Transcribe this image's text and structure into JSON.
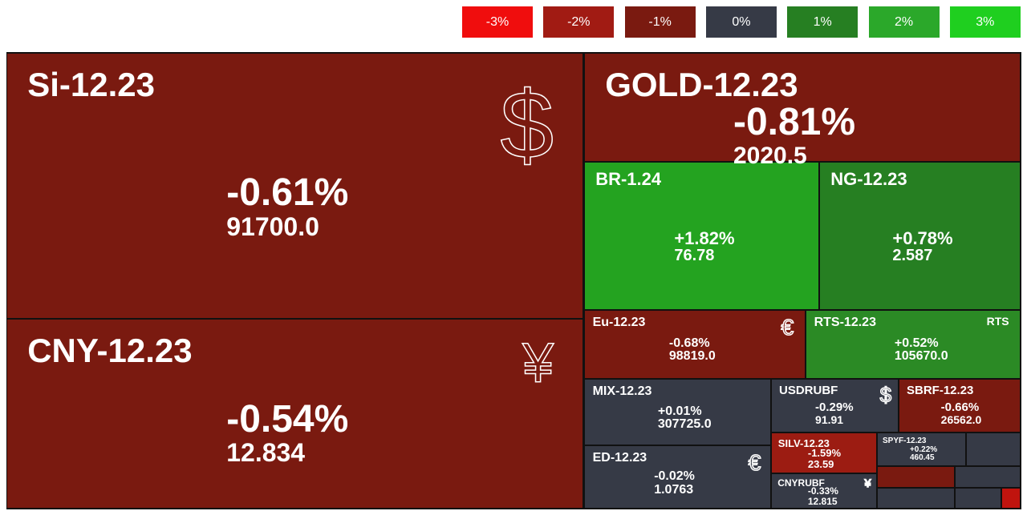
{
  "legend": [
    {
      "label": "-3%",
      "color": "#f00d0d"
    },
    {
      "label": "-2%",
      "color": "#a11b13"
    },
    {
      "label": "-1%",
      "color": "#7a1a10"
    },
    {
      "label": "0%",
      "color": "#363a46"
    },
    {
      "label": "1%",
      "color": "#267f22"
    },
    {
      "label": "2%",
      "color": "#2ba82a"
    },
    {
      "label": "3%",
      "color": "#1fcf1f"
    }
  ],
  "tiles": [
    {
      "name": "Si-12.23",
      "change": "-0.61%",
      "price": "91700.0",
      "icon": "$",
      "color": "#7a1a10"
    },
    {
      "name": "CNY-12.23",
      "change": "-0.54%",
      "price": "12.834",
      "icon": "¥",
      "color": "#7a1a10"
    },
    {
      "name": "GOLD-12.23",
      "change": "-0.81%",
      "price": "2020.5",
      "color": "#7a1a10"
    },
    {
      "name": "BR-1.24",
      "change": "+1.82%",
      "price": "76.78",
      "color": "#24a320"
    },
    {
      "name": "NG-12.23",
      "change": "+0.78%",
      "price": "2.587",
      "color": "#267f22"
    },
    {
      "name": "Eu-12.23",
      "change": "-0.68%",
      "price": "98819.0",
      "icon": "€",
      "color": "#7a1a10"
    },
    {
      "name": "RTS-12.23",
      "change": "+0.52%",
      "price": "105670.0",
      "icon": "RTS",
      "color": "#2b8a25"
    },
    {
      "name": "MIX-12.23",
      "change": "+0.01%",
      "price": "307725.0",
      "color": "#363a46"
    },
    {
      "name": "ED-12.23",
      "change": "-0.02%",
      "price": "1.0763",
      "icon": "€",
      "color": "#363a46"
    },
    {
      "name": "USDRUBF",
      "change": "-0.29%",
      "price": "91.91",
      "icon": "$",
      "color": "#363a46"
    },
    {
      "name": "SBRF-12.23",
      "change": "-0.66%",
      "price": "26562.0",
      "color": "#7a1a10"
    },
    {
      "name": "SILV-12.23",
      "change": "-1.59%",
      "price": "23.59",
      "color": "#9c1c12"
    },
    {
      "name": "CNYRUBF",
      "change": "-0.33%",
      "price": "12.815",
      "icon": "¥",
      "color": "#363a46"
    },
    {
      "name": "SPYF-12.23",
      "change": "+0.22%",
      "price": "460.45",
      "color": "#363a46"
    }
  ]
}
